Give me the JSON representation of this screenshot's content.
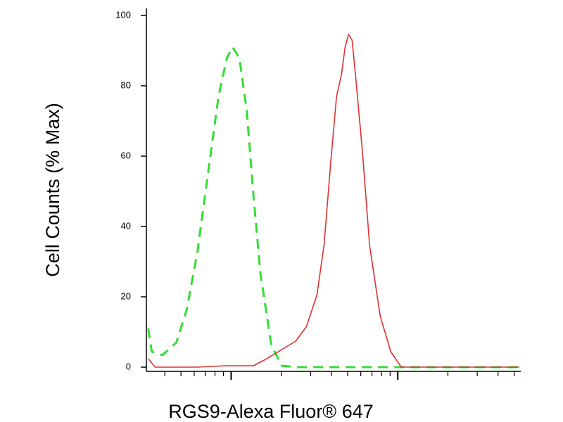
{
  "chart_data": {
    "type": "line",
    "xlabel": "RGS9-Alexa Fluor® 647",
    "ylabel": "Cell Counts (% Max)",
    "xscale": "log",
    "xlim": [
      3.16,
      537
    ],
    "xticks": [
      4,
      5,
      6,
      7,
      8,
      9,
      10,
      20,
      30,
      40,
      50,
      60,
      70,
      80,
      90,
      100,
      200,
      300,
      400,
      500
    ],
    "ylim": [
      -1,
      102
    ],
    "yticks": [
      0,
      20,
      40,
      60,
      80,
      100
    ],
    "grid": false,
    "series": [
      {
        "color": "#33dd33",
        "linestyle": "dashed",
        "x": [
          3.18,
          3.34,
          3.86,
          4.69,
          5.42,
          6.27,
          7.26,
          8.4,
          9.44,
          10.2,
          11.2,
          12.4,
          13.6,
          15.0,
          17.4,
          20.1,
          24.4,
          53.2,
          140,
          537
        ],
        "values": [
          11,
          4.4,
          3.4,
          7,
          16.5,
          32.6,
          55,
          77,
          88,
          91,
          88,
          73,
          49,
          26.6,
          6.4,
          0.4,
          0,
          0,
          0,
          0
        ]
      },
      {
        "color": "#e03030",
        "linestyle": "solid",
        "x": [
          3.18,
          3.5,
          6.27,
          7.62,
          9.25,
          13.6,
          15.8,
          19.2,
          24.4,
          28.3,
          32.7,
          36.1,
          39.7,
          42.9,
          45.9,
          48.3,
          50.7,
          53.2,
          55.8,
          61.5,
          67.8,
          78.5,
          90.8,
          105,
          140,
          537
        ],
        "values": [
          2.4,
          0,
          0,
          0.2,
          0.4,
          0.4,
          2,
          4.4,
          7.4,
          11.5,
          20.5,
          34.6,
          58.8,
          77,
          83,
          91,
          94.6,
          93,
          83,
          60.8,
          34.6,
          14.5,
          4.4,
          0,
          0,
          0
        ]
      }
    ]
  }
}
